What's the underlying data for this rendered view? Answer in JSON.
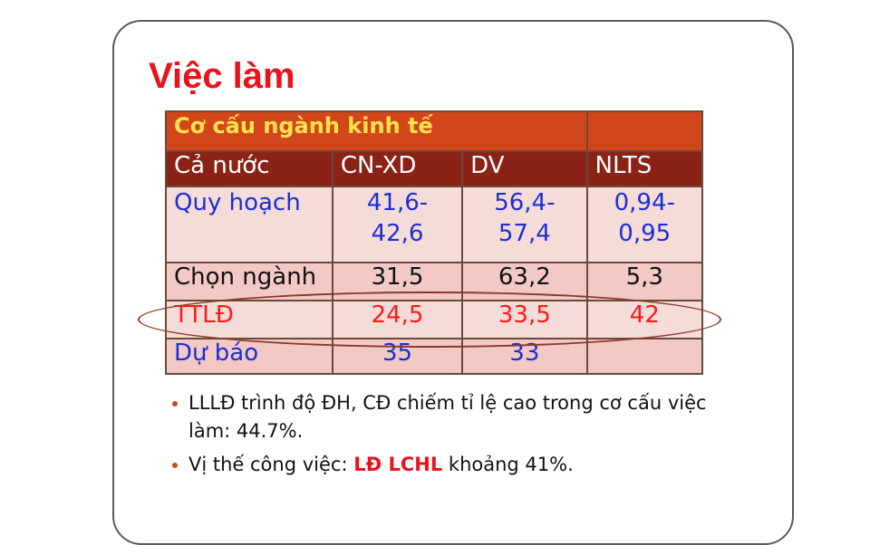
{
  "slide": {
    "title": "Việc làm"
  },
  "table": {
    "title": "Cơ cấu ngành kinh tế",
    "header": [
      "Cả nước",
      "CN-XD",
      "DV",
      "NLTS"
    ],
    "rows": [
      {
        "label": "Quy hoạch",
        "values": [
          "41,6-\n42,6",
          "56,4-\n57,4",
          "0,94-\n0,95"
        ]
      },
      {
        "label": "Chọn ngành",
        "values": [
          "31,5",
          "63,2",
          "5,3"
        ]
      },
      {
        "label": "TTLĐ",
        "values": [
          "24,5",
          "33,5",
          "42"
        ]
      },
      {
        "label": "Dự báo",
        "values": [
          "35",
          "33",
          ""
        ]
      }
    ]
  },
  "bullets": [
    {
      "text": "LLLĐ trình độ ĐH, CĐ chiếm tỉ lệ cao trong cơ cấu việc làm: 44.7%."
    },
    {
      "prefix": "Vị thế công việc: ",
      "emphasis": "LĐ LCHL",
      "suffix": " khoảng 41%."
    }
  ],
  "colors": {
    "title": "#e8141b",
    "table_title_bg": "#d2461c",
    "table_title_text": "#ffe34a",
    "header_bg": "#8a2316",
    "plan_text": "#1b2fd6",
    "ttld_text": "#ff1a1a",
    "bullet": "#d2461c"
  }
}
